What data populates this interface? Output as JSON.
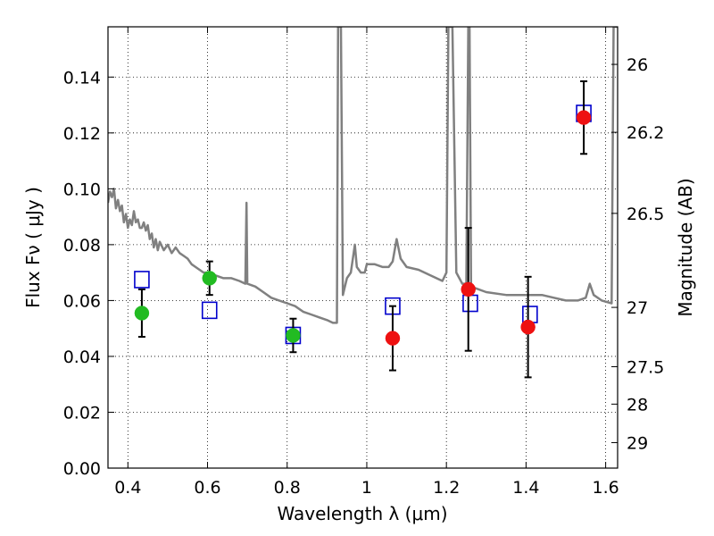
{
  "chart_data": {
    "type": "scatter",
    "xlabel": "Wavelength  λ (μm)",
    "ylabel": "Flux  Fν  ( μJy )",
    "y2label": "Magnitude (AB)",
    "xlim": [
      0.35,
      1.63
    ],
    "ylim": [
      0.0,
      0.158
    ],
    "grid": true,
    "x_ticks": [
      {
        "value": 0.4,
        "label": "0.4"
      },
      {
        "value": 0.6,
        "label": "0.6"
      },
      {
        "value": 0.8,
        "label": "0.8"
      },
      {
        "value": 1.0,
        "label": "1"
      },
      {
        "value": 1.2,
        "label": "1.2"
      },
      {
        "value": 1.4,
        "label": "1.4"
      },
      {
        "value": 1.6,
        "label": "1.6"
      }
    ],
    "y_ticks": [
      {
        "value": 0.0,
        "label": "0.00"
      },
      {
        "value": 0.02,
        "label": "0.02"
      },
      {
        "value": 0.04,
        "label": "0.04"
      },
      {
        "value": 0.06,
        "label": "0.06"
      },
      {
        "value": 0.08,
        "label": "0.08"
      },
      {
        "value": 0.1,
        "label": "0.10"
      },
      {
        "value": 0.12,
        "label": "0.12"
      },
      {
        "value": 0.14,
        "label": "0.14"
      }
    ],
    "y2_ticks": [
      {
        "mag": 26,
        "label": "26"
      },
      {
        "mag": 26.2,
        "label": "26.2"
      },
      {
        "mag": 26.5,
        "label": "26.5"
      },
      {
        "mag": 27,
        "label": "27"
      },
      {
        "mag": 27.5,
        "label": "27.5"
      },
      {
        "mag": 28,
        "label": "28"
      },
      {
        "mag": 29,
        "label": "29"
      }
    ],
    "colors": {
      "green": "#22bb22",
      "red": "#ee1111",
      "model_square": "#0000cc",
      "spectrum": "#808080",
      "errorbar": "#000000"
    },
    "series": [
      {
        "kind": "detections_green",
        "points": [
          {
            "x": 0.435,
            "y": 0.0555,
            "err": 0.0085
          },
          {
            "x": 0.605,
            "y": 0.068,
            "err": 0.006
          },
          {
            "x": 0.815,
            "y": 0.0475,
            "err": 0.006
          }
        ]
      },
      {
        "kind": "detections_red",
        "points": [
          {
            "x": 1.065,
            "y": 0.0465,
            "err": 0.0115
          },
          {
            "x": 1.255,
            "y": 0.064,
            "err": 0.022
          },
          {
            "x": 1.405,
            "y": 0.0505,
            "err": 0.018
          },
          {
            "x": 1.545,
            "y": 0.1255,
            "err": 0.013
          }
        ]
      },
      {
        "kind": "model_bandpass_squares",
        "points": [
          {
            "x": 0.435,
            "y": 0.0675
          },
          {
            "x": 0.605,
            "y": 0.0565
          },
          {
            "x": 0.815,
            "y": 0.0475
          },
          {
            "x": 1.065,
            "y": 0.058
          },
          {
            "x": 1.26,
            "y": 0.059
          },
          {
            "x": 1.41,
            "y": 0.055
          },
          {
            "x": 1.545,
            "y": 0.127
          }
        ]
      },
      {
        "kind": "model_spectrum",
        "points": [
          [
            0.35,
            0.095
          ],
          [
            0.355,
            0.099
          ],
          [
            0.36,
            0.097
          ],
          [
            0.365,
            0.1
          ],
          [
            0.37,
            0.093
          ],
          [
            0.375,
            0.096
          ],
          [
            0.38,
            0.092
          ],
          [
            0.385,
            0.094
          ],
          [
            0.39,
            0.088
          ],
          [
            0.395,
            0.091
          ],
          [
            0.4,
            0.086
          ],
          [
            0.405,
            0.089
          ],
          [
            0.41,
            0.087
          ],
          [
            0.415,
            0.092
          ],
          [
            0.42,
            0.088
          ],
          [
            0.425,
            0.089
          ],
          [
            0.43,
            0.086
          ],
          [
            0.435,
            0.086
          ],
          [
            0.44,
            0.088
          ],
          [
            0.445,
            0.085
          ],
          [
            0.45,
            0.087
          ],
          [
            0.455,
            0.082
          ],
          [
            0.46,
            0.084
          ],
          [
            0.465,
            0.079
          ],
          [
            0.47,
            0.082
          ],
          [
            0.475,
            0.078
          ],
          [
            0.48,
            0.081
          ],
          [
            0.49,
            0.078
          ],
          [
            0.5,
            0.08
          ],
          [
            0.51,
            0.077
          ],
          [
            0.52,
            0.079
          ],
          [
            0.53,
            0.077
          ],
          [
            0.54,
            0.076
          ],
          [
            0.55,
            0.075
          ],
          [
            0.56,
            0.073
          ],
          [
            0.57,
            0.072
          ],
          [
            0.58,
            0.071
          ],
          [
            0.59,
            0.07
          ],
          [
            0.6,
            0.07
          ],
          [
            0.62,
            0.069
          ],
          [
            0.64,
            0.068
          ],
          [
            0.66,
            0.068
          ],
          [
            0.68,
            0.067
          ],
          [
            0.695,
            0.066
          ],
          [
            0.698,
            0.095
          ],
          [
            0.7,
            0.066
          ],
          [
            0.72,
            0.065
          ],
          [
            0.74,
            0.063
          ],
          [
            0.76,
            0.061
          ],
          [
            0.78,
            0.06
          ],
          [
            0.8,
            0.059
          ],
          [
            0.82,
            0.058
          ],
          [
            0.84,
            0.056
          ],
          [
            0.86,
            0.055
          ],
          [
            0.88,
            0.054
          ],
          [
            0.9,
            0.053
          ],
          [
            0.915,
            0.052
          ],
          [
            0.925,
            0.052
          ],
          [
            0.928,
            0.158
          ],
          [
            0.935,
            0.158
          ],
          [
            0.94,
            0.062
          ],
          [
            0.95,
            0.068
          ],
          [
            0.96,
            0.07
          ],
          [
            0.97,
            0.08
          ],
          [
            0.975,
            0.072
          ],
          [
            0.985,
            0.07
          ],
          [
            0.995,
            0.07
          ],
          [
            1.0,
            0.073
          ],
          [
            1.02,
            0.073
          ],
          [
            1.04,
            0.072
          ],
          [
            1.055,
            0.072
          ],
          [
            1.065,
            0.074
          ],
          [
            1.075,
            0.082
          ],
          [
            1.085,
            0.075
          ],
          [
            1.1,
            0.072
          ],
          [
            1.13,
            0.071
          ],
          [
            1.16,
            0.069
          ],
          [
            1.19,
            0.067
          ],
          [
            1.2,
            0.07
          ],
          [
            1.205,
            0.158
          ],
          [
            1.215,
            0.158
          ],
          [
            1.225,
            0.07
          ],
          [
            1.24,
            0.066
          ],
          [
            1.25,
            0.066
          ],
          [
            1.255,
            0.158
          ],
          [
            1.258,
            0.158
          ],
          [
            1.262,
            0.065
          ],
          [
            1.3,
            0.063
          ],
          [
            1.35,
            0.062
          ],
          [
            1.4,
            0.062
          ],
          [
            1.44,
            0.062
          ],
          [
            1.47,
            0.061
          ],
          [
            1.5,
            0.06
          ],
          [
            1.53,
            0.06
          ],
          [
            1.55,
            0.061
          ],
          [
            1.56,
            0.066
          ],
          [
            1.57,
            0.062
          ],
          [
            1.59,
            0.06
          ],
          [
            1.615,
            0.059
          ],
          [
            1.62,
            0.158
          ],
          [
            1.63,
            0.158
          ]
        ]
      }
    ]
  }
}
